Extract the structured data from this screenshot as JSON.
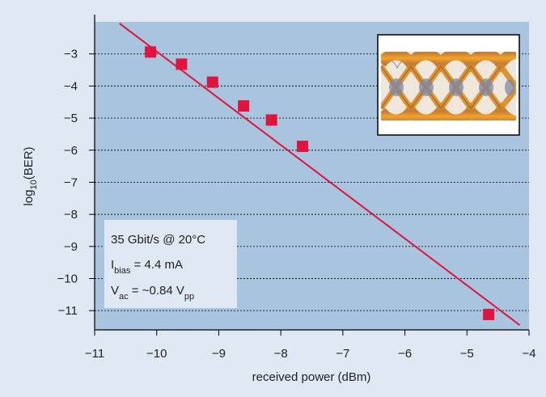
{
  "chart_data": {
    "type": "scatter",
    "xlabel": "received power (dBm)",
    "ylabel": "log10(BER)",
    "ylabel_parts": {
      "base": "log",
      "sub": "10",
      "rest": "(BER)"
    },
    "xlim": [
      -11,
      -4
    ],
    "ylim": [
      -11.6,
      -2.0
    ],
    "x_ticks": [
      -11,
      -10,
      -9,
      -8,
      -7,
      -6,
      -5,
      -4
    ],
    "x_tick_labels": [
      "−11",
      "−10",
      "−9",
      "−8",
      "−7",
      "−6",
      "−5",
      "−4"
    ],
    "y_ticks": [
      -3,
      -4,
      -5,
      -6,
      -7,
      -8,
      -9,
      -10,
      -11
    ],
    "y_tick_labels": [
      "−3",
      "−4",
      "−5",
      "−6",
      "−7",
      "−8",
      "−9",
      "−10",
      "−11"
    ],
    "grid": {
      "horizontal_dotted": true
    },
    "series": [
      {
        "type": "scatter",
        "marker": "square",
        "color": "#e0143c",
        "points": [
          {
            "x": -10.1,
            "y": -2.94
          },
          {
            "x": -9.6,
            "y": -3.32
          },
          {
            "x": -9.1,
            "y": -3.88
          },
          {
            "x": -8.6,
            "y": -4.62
          },
          {
            "x": -8.15,
            "y": -5.06
          },
          {
            "x": -7.65,
            "y": -5.88
          },
          {
            "x": -4.65,
            "y": -11.12
          }
        ]
      },
      {
        "type": "fit-line",
        "color": "#e0143c",
        "from": {
          "x": -10.6,
          "y": -2.05
        },
        "to": {
          "x": -4.15,
          "y": -11.45
        }
      }
    ],
    "annotation": {
      "line1": "35 Gbit/s @ 20°C",
      "line2": {
        "main": "I",
        "sub": "bias",
        "rest": " = 4.4 mA"
      },
      "line3": {
        "main": "V",
        "sub": "ac",
        "mid": " = ~0.84 V",
        "sub2": "pp"
      }
    },
    "inset": {
      "description_icon": "eye-diagram-image"
    }
  },
  "colors": {
    "background": "#dfe8f3",
    "plot_area": "#a9c4de",
    "marker": "#e0143c",
    "annotation_box": "#dfe8f3"
  }
}
